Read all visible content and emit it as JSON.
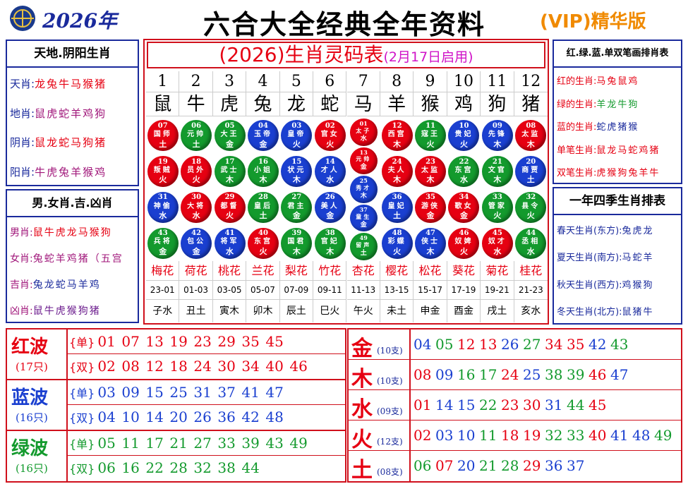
{
  "header": {
    "year": "2026年",
    "title": "六合大全经典全年资料",
    "badge": "(VIP)精华版"
  },
  "left_top": {
    "title": "天地.阴阳生肖",
    "rows": [
      {
        "label": "天肖:",
        "value": "龙兔牛马猴猪"
      },
      {
        "label": "地肖:",
        "value": "鼠虎蛇羊鸡狗"
      },
      {
        "label": "阴肖:",
        "value": "鼠龙蛇马狗猪"
      },
      {
        "label": "阳肖:",
        "value": "牛虎兔羊猴鸡"
      }
    ]
  },
  "left_bottom": {
    "title": "男.女肖.吉.凶肖",
    "rows": [
      {
        "label": "男肖:",
        "value": "鼠牛虎龙马猴狗"
      },
      {
        "label": "女肖:",
        "value": "兔蛇羊鸡猪（五宫"
      },
      {
        "label": "吉肖:",
        "value": "兔龙蛇马羊鸡"
      },
      {
        "label": "凶肖:",
        "value": "鼠牛虎猴狗猪"
      }
    ]
  },
  "center": {
    "title": "(2026)生肖灵码表",
    "subtitle": "(2月17日启用)",
    "columns": [
      {
        "index": 1,
        "zodiac": "鼠",
        "balls": [
          {
            "number": "07",
            "name": "国师",
            "element": "土"
          },
          {
            "number": "19",
            "name": "叛贼",
            "element": "火"
          },
          {
            "number": "31",
            "name": "神偷",
            "element": "水"
          },
          {
            "number": "43",
            "name": "兵将",
            "element": "金"
          }
        ],
        "flower": "梅花",
        "hours": "23-01",
        "branch": "子水"
      },
      {
        "index": 2,
        "zodiac": "牛",
        "balls": [
          {
            "number": "06",
            "name": "元帅",
            "element": "土"
          },
          {
            "number": "18",
            "name": "员外",
            "element": "火"
          },
          {
            "number": "30",
            "name": "大将",
            "element": "水"
          },
          {
            "number": "42",
            "name": "包公",
            "element": "金"
          }
        ],
        "flower": "荷花",
        "hours": "01-03",
        "branch": "丑土"
      },
      {
        "index": 3,
        "zodiac": "虎",
        "balls": [
          {
            "number": "05",
            "name": "大王",
            "element": "金"
          },
          {
            "number": "17",
            "name": "武士",
            "element": "木"
          },
          {
            "number": "29",
            "name": "都督",
            "element": "火"
          },
          {
            "number": "41",
            "name": "将军",
            "element": "水"
          }
        ],
        "flower": "桃花",
        "hours": "03-05",
        "branch": "寅木"
      },
      {
        "index": 4,
        "zodiac": "兔",
        "balls": [
          {
            "number": "04",
            "name": "玉帝",
            "element": "金"
          },
          {
            "number": "16",
            "name": "小姐",
            "element": "木"
          },
          {
            "number": "28",
            "name": "皇后",
            "element": "土"
          },
          {
            "number": "40",
            "name": "东宫",
            "element": "火"
          }
        ],
        "flower": "兰花",
        "hours": "05-07",
        "branch": "卯木"
      },
      {
        "index": 5,
        "zodiac": "龙",
        "balls": [
          {
            "number": "03",
            "name": "皇帝",
            "element": "火"
          },
          {
            "number": "15",
            "name": "状元",
            "element": "木"
          },
          {
            "number": "27",
            "name": "君主",
            "element": "金"
          },
          {
            "number": "39",
            "name": "国君",
            "element": "木"
          }
        ],
        "flower": "梨花",
        "hours": "07-09",
        "branch": "辰土"
      },
      {
        "index": 6,
        "zodiac": "蛇",
        "balls": [
          {
            "number": "02",
            "name": "官女",
            "element": "火"
          },
          {
            "number": "14",
            "name": "才人",
            "element": "水"
          },
          {
            "number": "26",
            "name": "美人",
            "element": "金"
          },
          {
            "number": "38",
            "name": "官妃",
            "element": "木"
          }
        ],
        "flower": "竹花",
        "hours": "09-11",
        "branch": "巳火"
      },
      {
        "index": 7,
        "zodiac": "马",
        "balls": [
          {
            "number": "01",
            "name": "太子",
            "element": "水"
          },
          {
            "number": "13",
            "name": "元帅",
            "element": "金"
          },
          {
            "number": "25",
            "name": "秀才",
            "element": "木"
          },
          {
            "number": "37",
            "name": "童生",
            "element": "金"
          },
          {
            "number": "49",
            "name": "留声",
            "element": "土"
          }
        ],
        "flower": "杏花",
        "hours": "11-13",
        "branch": "午火"
      },
      {
        "index": 8,
        "zodiac": "羊",
        "balls": [
          {
            "number": "12",
            "name": "西宫",
            "element": "木"
          },
          {
            "number": "24",
            "name": "夫人",
            "element": "木"
          },
          {
            "number": "36",
            "name": "皇妃",
            "element": "土"
          },
          {
            "number": "48",
            "name": "彩蝶",
            "element": "火"
          }
        ],
        "flower": "樱花",
        "hours": "13-15",
        "branch": "未土"
      },
      {
        "index": 9,
        "zodiac": "猴",
        "balls": [
          {
            "number": "11",
            "name": "寇王",
            "element": "火"
          },
          {
            "number": "23",
            "name": "太监",
            "element": "木"
          },
          {
            "number": "35",
            "name": "游侠",
            "element": "金"
          },
          {
            "number": "47",
            "name": "侠士",
            "element": "木"
          }
        ],
        "flower": "松花",
        "hours": "15-17",
        "branch": "申金"
      },
      {
        "index": 10,
        "zodiac": "鸡",
        "balls": [
          {
            "number": "10",
            "name": "贵妃",
            "element": "火"
          },
          {
            "number": "22",
            "name": "东宫",
            "element": "水"
          },
          {
            "number": "34",
            "name": "歌女",
            "element": "金"
          },
          {
            "number": "46",
            "name": "奴婢",
            "element": "火"
          }
        ],
        "flower": "葵花",
        "hours": "17-19",
        "branch": "酉金"
      },
      {
        "index": 11,
        "zodiac": "狗",
        "balls": [
          {
            "number": "09",
            "name": "先锋",
            "element": "木"
          },
          {
            "number": "21",
            "name": "文官",
            "element": "木"
          },
          {
            "number": "33",
            "name": "管家",
            "element": "火"
          },
          {
            "number": "45",
            "name": "奴才",
            "element": "水"
          }
        ],
        "flower": "菊花",
        "hours": "19-21",
        "branch": "戌土"
      },
      {
        "index": 12,
        "zodiac": "猪",
        "balls": [
          {
            "number": "08",
            "name": "太监",
            "element": "木"
          },
          {
            "number": "20",
            "name": "商贾",
            "element": "土"
          },
          {
            "number": "32",
            "name": "县令",
            "element": "火"
          },
          {
            "number": "44",
            "name": "丞相",
            "element": "水"
          }
        ],
        "flower": "桂花",
        "hours": "21-23",
        "branch": "亥水"
      }
    ]
  },
  "right_top": {
    "title": "红.绿.蓝.单双笔画排肖表",
    "rows": [
      {
        "label": "红的生肖:",
        "value": "马兔鼠鸡"
      },
      {
        "label": "绿的生肖:",
        "value": "羊龙牛狗"
      },
      {
        "label": "蓝的生肖:",
        "value": "蛇虎猪猴"
      },
      {
        "label": "单笔生肖:",
        "value": "鼠龙马蛇鸡猪"
      },
      {
        "label": "双笔生肖:",
        "value": "虎猴狗兔羊牛"
      }
    ]
  },
  "right_bottom": {
    "title": "一年四季生肖排表",
    "rows": [
      {
        "label": "春天生肖(东方):",
        "value": "兔虎龙"
      },
      {
        "label": "夏天生肖(南方):",
        "value": "马蛇羊"
      },
      {
        "label": "秋天生肖(西方):",
        "value": "鸡猴狗"
      },
      {
        "label": "冬天生肖(北方):",
        "value": "鼠猪牛"
      }
    ]
  },
  "waves": [
    {
      "name": "红波",
      "count": "(17只)",
      "color": "#e60012",
      "rows": [
        {
          "tag": "{单}",
          "numbers": [
            "01",
            "07",
            "13",
            "19",
            "23",
            "29",
            "35",
            "45"
          ]
        },
        {
          "tag": "{双}",
          "numbers": [
            "02",
            "08",
            "12",
            "18",
            "24",
            "30",
            "34",
            "40",
            "46"
          ]
        }
      ]
    },
    {
      "name": "蓝波",
      "count": "(16只)",
      "color": "#1a3fd0",
      "rows": [
        {
          "tag": "{单}",
          "numbers": [
            "03",
            "09",
            "15",
            "25",
            "31",
            "37",
            "41",
            "47"
          ]
        },
        {
          "tag": "{双}",
          "numbers": [
            "04",
            "10",
            "14",
            "20",
            "26",
            "36",
            "42",
            "48"
          ]
        }
      ]
    },
    {
      "name": "绿波",
      "count": "(16只)",
      "color": "#139a2d",
      "rows": [
        {
          "tag": "{单}",
          "numbers": [
            "05",
            "11",
            "17",
            "21",
            "27",
            "33",
            "39",
            "43",
            "49"
          ]
        },
        {
          "tag": "{双}",
          "numbers": [
            "06",
            "16",
            "22",
            "28",
            "32",
            "38",
            "44"
          ]
        }
      ]
    }
  ],
  "elements": [
    {
      "name": "金",
      "count": "(10支)",
      "numbers": [
        "04",
        "05",
        "12",
        "13",
        "26",
        "27",
        "34",
        "35",
        "42",
        "43"
      ]
    },
    {
      "name": "木",
      "count": "(10支)",
      "numbers": [
        "08",
        "09",
        "16",
        "17",
        "24",
        "25",
        "38",
        "39",
        "46",
        "47"
      ]
    },
    {
      "name": "水",
      "count": "(09支)",
      "numbers": [
        "01",
        "14",
        "15",
        "22",
        "23",
        "30",
        "31",
        "44",
        "45"
      ]
    },
    {
      "name": "火",
      "count": "(12支)",
      "numbers": [
        "02",
        "03",
        "10",
        "11",
        "18",
        "19",
        "32",
        "33",
        "40",
        "41",
        "48",
        "49"
      ]
    },
    {
      "name": "土",
      "count": "(08支)",
      "numbers": [
        "06",
        "07",
        "20",
        "21",
        "28",
        "29",
        "36",
        "37"
      ]
    }
  ]
}
